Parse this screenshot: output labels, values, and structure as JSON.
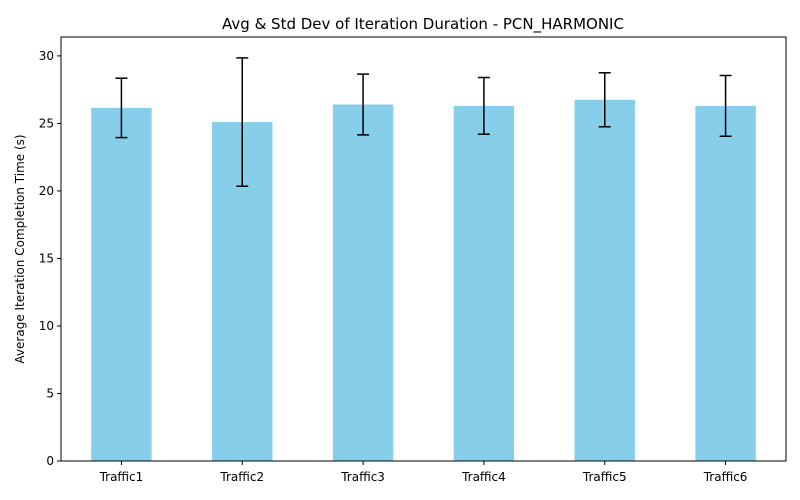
{
  "chart_data": {
    "type": "bar",
    "title": "Avg & Std Dev of Iteration Duration - PCN_HARMONIC",
    "xlabel": "",
    "ylabel": "Average Iteration Completion Time (s)",
    "categories": [
      "Traffic1",
      "Traffic2",
      "Traffic3",
      "Traffic4",
      "Traffic5",
      "Traffic6"
    ],
    "values": [
      26.15,
      25.1,
      26.4,
      26.3,
      26.75,
      26.3
    ],
    "errors": [
      2.2,
      4.75,
      2.25,
      2.1,
      2.0,
      2.25
    ],
    "ylim": [
      0,
      31.4
    ],
    "yticks": [
      0,
      5,
      10,
      15,
      20,
      25,
      30
    ],
    "grid": false,
    "bar_color": "#87ceeb",
    "error_color": "#000000"
  }
}
